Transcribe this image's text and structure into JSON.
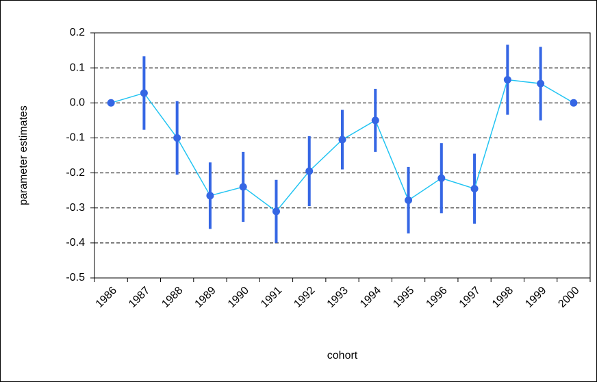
{
  "chart_data": {
    "type": "line",
    "y_label": "parameter estimates",
    "x_label": "cohort",
    "categories": [
      "1986",
      "1987",
      "1988",
      "1989",
      "1990",
      "1991",
      "1992",
      "1993",
      "1994",
      "1995",
      "1996",
      "1997",
      "1998",
      "1999",
      "2000"
    ],
    "values": [
      0,
      0.028,
      -0.1,
      -0.265,
      -0.24,
      -0.31,
      -0.195,
      -0.105,
      -0.05,
      -0.278,
      -0.215,
      -0.245,
      0.066,
      0.055,
      0
    ],
    "errors": [
      0,
      0.105,
      0.105,
      0.095,
      0.1,
      0.09,
      0.1,
      0.085,
      0.09,
      0.095,
      0.1,
      0.1,
      0.1,
      0.105,
      0
    ],
    "line_color": "#22c4f2",
    "marker_color": "#3566e4",
    "ylim": [
      -0.5,
      0.2
    ],
    "yticks": [
      0.2,
      0.1,
      {
        "value": 0,
        "label": "0.0"
      },
      -0.1,
      -0.2,
      -0.3,
      -0.4,
      -0.5
    ],
    "grid": true
  }
}
